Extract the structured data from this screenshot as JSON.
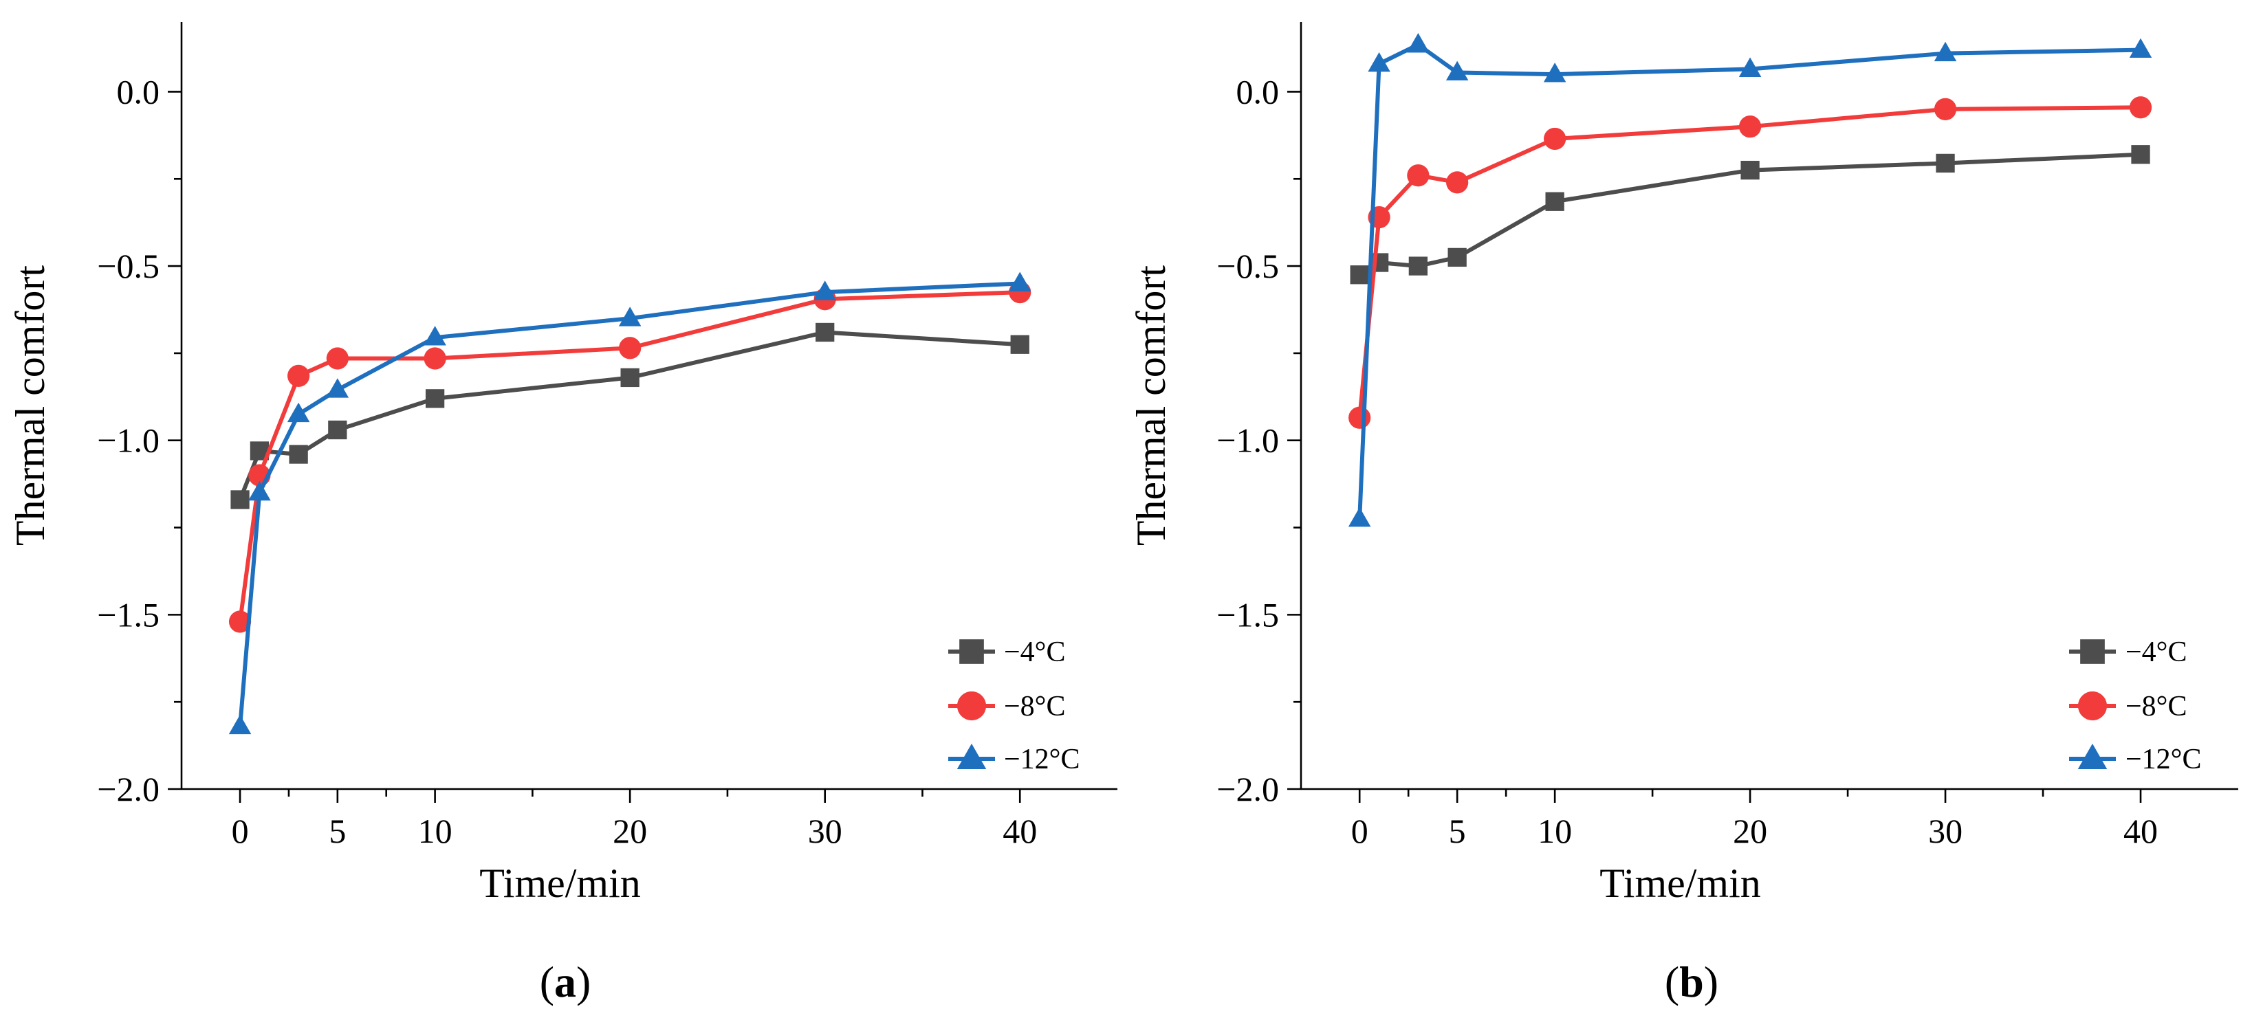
{
  "chart_data": [
    {
      "type": "line",
      "panel": "a",
      "caption_letter": "a",
      "xlabel": "Time/min",
      "ylabel": "Thermal comfort",
      "xlim": [
        -3,
        45
      ],
      "ylim": [
        -2.0,
        0.2
      ],
      "xticks": [
        0,
        5,
        10,
        20,
        30,
        40
      ],
      "xtick_labels": [
        "0",
        "5",
        "10",
        "20",
        "30",
        "40"
      ],
      "yticks": [
        -2.0,
        -1.5,
        -1.0,
        -0.5,
        0.0
      ],
      "ytick_labels": [
        "−2.0",
        "−1.5",
        "−1.0",
        "−0.5",
        "0.0"
      ],
      "legend_position": "bottom-right",
      "x": [
        0,
        1,
        3,
        5,
        10,
        20,
        30,
        40
      ],
      "series": [
        {
          "name": "−4°C",
          "color": "#4d4d4d",
          "marker": "square",
          "values": [
            -1.17,
            -1.03,
            -1.04,
            -0.97,
            -0.88,
            -0.82,
            -0.69,
            -0.725
          ]
        },
        {
          "name": "−8°C",
          "color": "#f23b3b",
          "marker": "circle",
          "values": [
            -1.52,
            -1.1,
            -0.815,
            -0.765,
            -0.765,
            -0.735,
            -0.595,
            -0.575
          ]
        },
        {
          "name": "−12°C",
          "color": "#1f6fbf",
          "marker": "triangle",
          "values": [
            -1.82,
            -1.15,
            -0.925,
            -0.855,
            -0.705,
            -0.65,
            -0.575,
            -0.55
          ]
        }
      ]
    },
    {
      "type": "line",
      "panel": "b",
      "caption_letter": "b",
      "xlabel": "Time/min",
      "ylabel": "Thermal comfort",
      "xlim": [
        -3,
        45
      ],
      "ylim": [
        -2.0,
        0.2
      ],
      "xticks": [
        0,
        5,
        10,
        20,
        30,
        40
      ],
      "xtick_labels": [
        "0",
        "5",
        "10",
        "20",
        "30",
        "40"
      ],
      "yticks": [
        -2.0,
        -1.5,
        -1.0,
        -0.5,
        0.0
      ],
      "ytick_labels": [
        "−2.0",
        "−1.5",
        "−1.0",
        "−0.5",
        "0.0"
      ],
      "legend_position": "bottom-right",
      "x": [
        0,
        1,
        3,
        5,
        10,
        20,
        30,
        40
      ],
      "series": [
        {
          "name": "−4°C",
          "color": "#4d4d4d",
          "marker": "square",
          "values": [
            -0.525,
            -0.49,
            -0.5,
            -0.475,
            -0.315,
            -0.225,
            -0.205,
            -0.18
          ]
        },
        {
          "name": "−8°C",
          "color": "#f23b3b",
          "marker": "circle",
          "values": [
            -0.935,
            -0.36,
            -0.24,
            -0.26,
            -0.135,
            -0.1,
            -0.05,
            -0.045
          ]
        },
        {
          "name": "−12°C",
          "color": "#1f6fbf",
          "marker": "triangle",
          "values": [
            -1.225,
            0.08,
            0.135,
            0.055,
            0.05,
            0.065,
            0.11,
            0.12
          ]
        }
      ]
    }
  ]
}
